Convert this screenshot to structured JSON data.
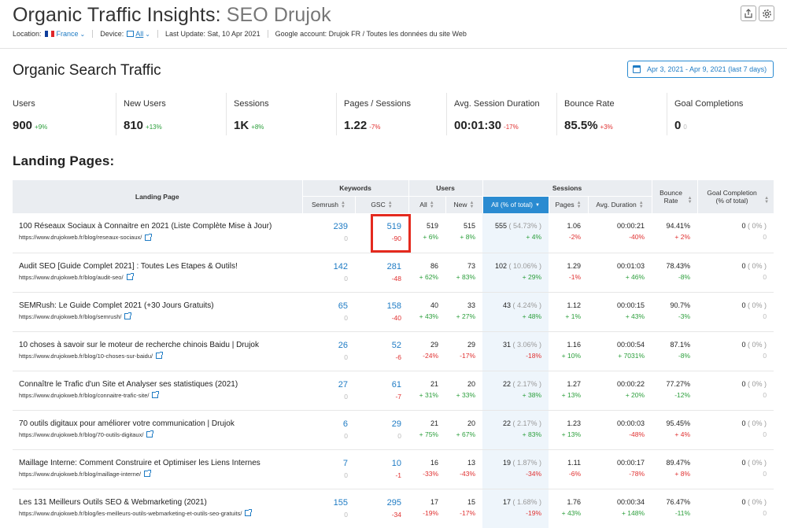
{
  "header": {
    "title": "Organic Traffic Insights:",
    "project": "SEO Drujok",
    "location_label": "Location:",
    "location_value": "France",
    "device_label": "Device:",
    "device_value": "All",
    "last_update": "Last Update: Sat, 10 Apr 2021",
    "google_account": "Google account: Drujok FR / Toutes les données du site Web",
    "export_icon": "share-export-icon",
    "settings_icon": "gear-icon"
  },
  "section_title": "Organic Search Traffic",
  "date_range": "Apr 3, 2021 - Apr 9, 2021 (last 7 days)",
  "metrics": [
    {
      "label": "Users",
      "value": "900",
      "delta": "+9%",
      "dir": "up"
    },
    {
      "label": "New Users",
      "value": "810",
      "delta": "+13%",
      "dir": "up"
    },
    {
      "label": "Sessions",
      "value": "1K",
      "delta": "+8%",
      "dir": "up"
    },
    {
      "label": "Pages / Sessions",
      "value": "1.22",
      "delta": "-7%",
      "dir": "dn"
    },
    {
      "label": "Avg. Session Duration",
      "value": "00:01:30",
      "delta": "-17%",
      "dir": "dn"
    },
    {
      "label": "Bounce Rate",
      "value": "85.5%",
      "delta": "+3%",
      "dir": "dn"
    },
    {
      "label": "Goal Completions",
      "value": "0",
      "delta": "0",
      "dir": "zr"
    }
  ],
  "landing_title": "Landing Pages:",
  "table": {
    "groups": {
      "landing": "Landing Page",
      "keywords": "Keywords",
      "users": "Users",
      "sessions": "Sessions",
      "bounce": "Bounce Rate",
      "goal": "Goal Completion (% of total)"
    },
    "cols": {
      "semrush": "Semrush",
      "gsc": "GSC",
      "all": "All",
      "new": "New",
      "all_total": "All (% of total)",
      "pages": "Pages",
      "avg_duration": "Avg. Duration"
    },
    "rows": [
      {
        "title": "100 Réseaux Sociaux à Connaitre en 2021 (Liste Complète Mise à Jour)",
        "url": "https://www.drujokweb.fr/blog/reseaux-sociaux/",
        "semrush": "239",
        "semrush_d": "0",
        "gsc": "519",
        "gsc_d": "-90",
        "all": "519",
        "all_d": "+ 6%",
        "new": "515",
        "new_d": "+ 8%",
        "sess": "555",
        "sess_pct": "( 54.73% )",
        "sess_d": "+ 4%",
        "pages": "1.06",
        "pages_d": "-2%",
        "dur": "00:00:21",
        "dur_d": "-40%",
        "bounce": "94.41%",
        "bounce_d": "+ 2%",
        "goal": "0",
        "goal_pct": "( 0% )",
        "goal_d": "0"
      },
      {
        "title": "Audit SEO [Guide Complet 2021] : Toutes Les Etapes & Outils!",
        "url": "https://www.drujokweb.fr/blog/audit-seo/",
        "semrush": "142",
        "semrush_d": "0",
        "gsc": "281",
        "gsc_d": "-48",
        "all": "86",
        "all_d": "+ 62%",
        "new": "73",
        "new_d": "+ 83%",
        "sess": "102",
        "sess_pct": "( 10.06% )",
        "sess_d": "+ 29%",
        "pages": "1.29",
        "pages_d": "-1%",
        "dur": "00:01:03",
        "dur_d": "+ 46%",
        "bounce": "78.43%",
        "bounce_d": "-8%",
        "goal": "0",
        "goal_pct": "( 0% )",
        "goal_d": "0"
      },
      {
        "title": "SEMRush: Le Guide Complet 2021 (+30 Jours Gratuits)",
        "url": "https://www.drujokweb.fr/blog/semrush/",
        "semrush": "65",
        "semrush_d": "0",
        "gsc": "158",
        "gsc_d": "-40",
        "all": "40",
        "all_d": "+ 43%",
        "new": "33",
        "new_d": "+ 27%",
        "sess": "43",
        "sess_pct": "( 4.24% )",
        "sess_d": "+ 48%",
        "pages": "1.12",
        "pages_d": "+ 1%",
        "dur": "00:00:15",
        "dur_d": "+ 43%",
        "bounce": "90.7%",
        "bounce_d": "-3%",
        "goal": "0",
        "goal_pct": "( 0% )",
        "goal_d": "0"
      },
      {
        "title": "10 choses à savoir sur le moteur de recherche chinois Baidu | Drujok",
        "url": "https://www.drujokweb.fr/blog/10-choses-sur-baidu/",
        "semrush": "26",
        "semrush_d": "0",
        "gsc": "52",
        "gsc_d": "-6",
        "all": "29",
        "all_d": "-24%",
        "new": "29",
        "new_d": "-17%",
        "sess": "31",
        "sess_pct": "( 3.06% )",
        "sess_d": "-18%",
        "pages": "1.16",
        "pages_d": "+ 10%",
        "dur": "00:00:54",
        "dur_d": "+ 7031%",
        "bounce": "87.1%",
        "bounce_d": "-8%",
        "goal": "0",
        "goal_pct": "( 0% )",
        "goal_d": "0"
      },
      {
        "title": "Connaître le Trafic d'un Site et Analyser ses statistiques (2021)",
        "url": "https://www.drujokweb.fr/blog/connaitre-trafic-site/",
        "semrush": "27",
        "semrush_d": "0",
        "gsc": "61",
        "gsc_d": "-7",
        "all": "21",
        "all_d": "+ 31%",
        "new": "20",
        "new_d": "+ 33%",
        "sess": "22",
        "sess_pct": "( 2.17% )",
        "sess_d": "+ 38%",
        "pages": "1.27",
        "pages_d": "+ 13%",
        "dur": "00:00:22",
        "dur_d": "+ 20%",
        "bounce": "77.27%",
        "bounce_d": "-12%",
        "goal": "0",
        "goal_pct": "( 0% )",
        "goal_d": "0"
      },
      {
        "title": "70 outils digitaux pour améliorer votre communication | Drujok",
        "url": "https://www.drujokweb.fr/blog/70-outils-digitaux/",
        "semrush": "6",
        "semrush_d": "0",
        "gsc": "29",
        "gsc_d": "0",
        "all": "21",
        "all_d": "+ 75%",
        "new": "20",
        "new_d": "+ 67%",
        "sess": "22",
        "sess_pct": "( 2.17% )",
        "sess_d": "+ 83%",
        "pages": "1.23",
        "pages_d": "+ 13%",
        "dur": "00:00:03",
        "dur_d": "-48%",
        "bounce": "95.45%",
        "bounce_d": "+ 4%",
        "goal": "0",
        "goal_pct": "( 0% )",
        "goal_d": "0"
      },
      {
        "title": "Maillage Interne: Comment Construire et Optimiser les Liens Internes",
        "url": "https://www.drujokweb.fr/blog/maillage-interne/",
        "semrush": "7",
        "semrush_d": "0",
        "gsc": "10",
        "gsc_d": "-1",
        "all": "16",
        "all_d": "-33%",
        "new": "13",
        "new_d": "-43%",
        "sess": "19",
        "sess_pct": "( 1.87% )",
        "sess_d": "-34%",
        "pages": "1.11",
        "pages_d": "-6%",
        "dur": "00:00:17",
        "dur_d": "-78%",
        "bounce": "89.47%",
        "bounce_d": "+ 8%",
        "goal": "0",
        "goal_pct": "( 0% )",
        "goal_d": "0"
      },
      {
        "title": "Les 131 Meilleurs Outils SEO & Webmarketing (2021)",
        "url": "https://www.drujokweb.fr/blog/les-meilleurs-outils-webmarketing-et-outils-seo-gratuits/",
        "semrush": "155",
        "semrush_d": "0",
        "gsc": "295",
        "gsc_d": "-34",
        "all": "17",
        "all_d": "-19%",
        "new": "15",
        "new_d": "-17%",
        "sess": "17",
        "sess_pct": "( 1.68% )",
        "sess_d": "-19%",
        "pages": "1.76",
        "pages_d": "+ 43%",
        "dur": "00:00:34",
        "dur_d": "+ 148%",
        "bounce": "76.47%",
        "bounce_d": "-11%",
        "goal": "0",
        "goal_pct": "( 0% )",
        "goal_d": "0"
      }
    ]
  }
}
